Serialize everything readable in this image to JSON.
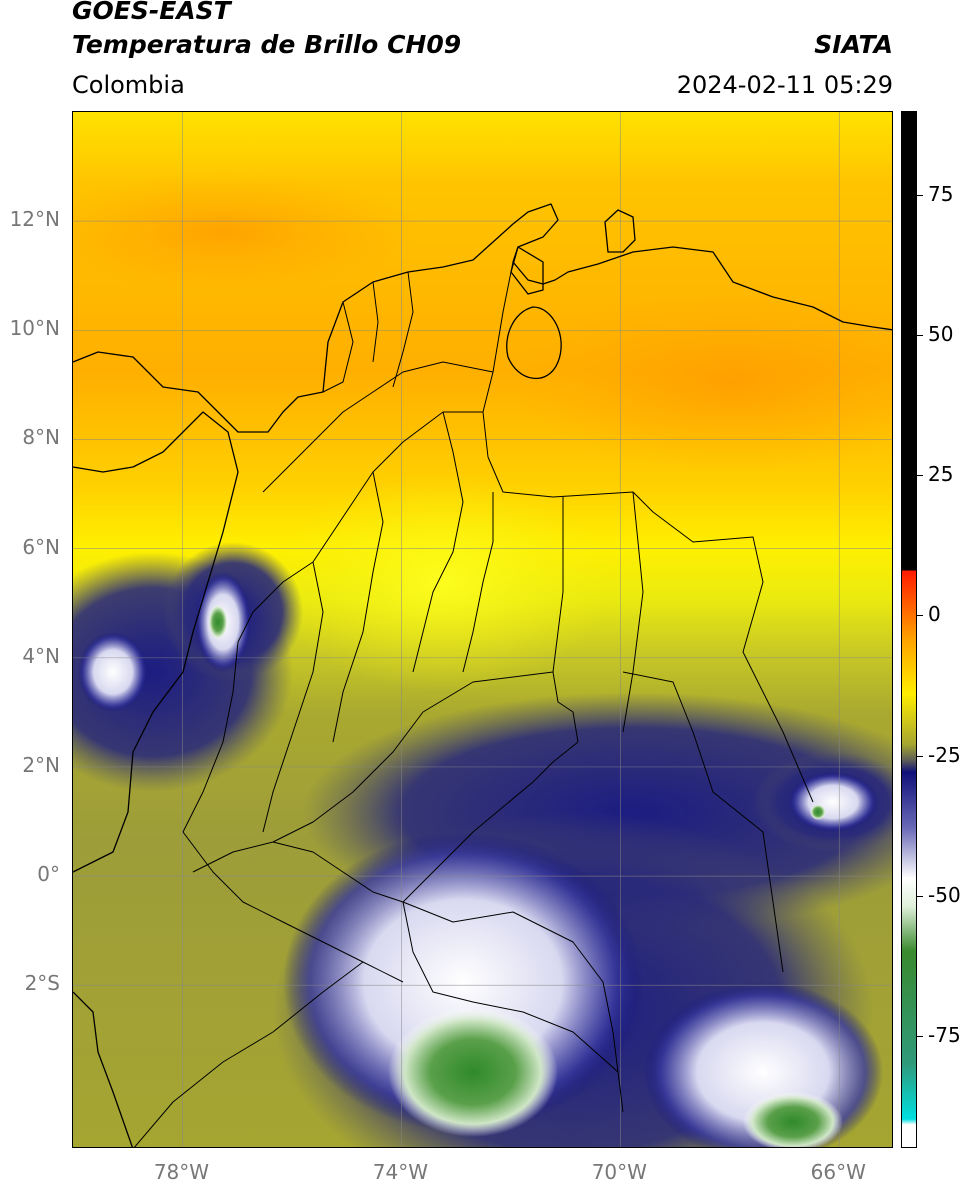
{
  "header": {
    "satellite": "GOES-EAST",
    "product": "Temperatura de Brillo CH09",
    "region": "Colombia",
    "agency": "SIATA",
    "datetime": "2024-02-11 05:29"
  },
  "map": {
    "extent": {
      "lon_min": -80,
      "lon_max": -65,
      "lat_min": -5,
      "lat_max": 14
    },
    "lat_ticks": [
      {
        "value": 12,
        "label": "12°N"
      },
      {
        "value": 10,
        "label": "10°N"
      },
      {
        "value": 8,
        "label": "8°N"
      },
      {
        "value": 6,
        "label": "6°N"
      },
      {
        "value": 4,
        "label": "4°N"
      },
      {
        "value": 2,
        "label": "2°N"
      },
      {
        "value": 0,
        "label": "0°"
      },
      {
        "value": -2,
        "label": "2°S"
      }
    ],
    "lon_ticks": [
      {
        "value": -78,
        "label": "78°W"
      },
      {
        "value": -74,
        "label": "74°W"
      },
      {
        "value": -70,
        "label": "70°W"
      },
      {
        "value": -66,
        "label": "66°W"
      }
    ],
    "grid": true
  },
  "colorbar": {
    "min": -95,
    "max": 90,
    "ticks": [
      {
        "value": 75,
        "label": "75"
      },
      {
        "value": 50,
        "label": "50"
      },
      {
        "value": 25,
        "label": "25"
      },
      {
        "value": 0,
        "label": "0"
      },
      {
        "value": -25,
        "label": "-25"
      },
      {
        "value": -50,
        "label": "-50"
      },
      {
        "value": -75,
        "label": "-75"
      }
    ],
    "colors": {
      "black": "#000000",
      "red": "#ff1a00",
      "orange": "#ffa000",
      "yellow": "#ffee00",
      "olive": "#a6a630",
      "navy": "#10107a",
      "white": "#ffffff",
      "green": "#3a8a2e",
      "cyan": "#00e0e0"
    }
  }
}
